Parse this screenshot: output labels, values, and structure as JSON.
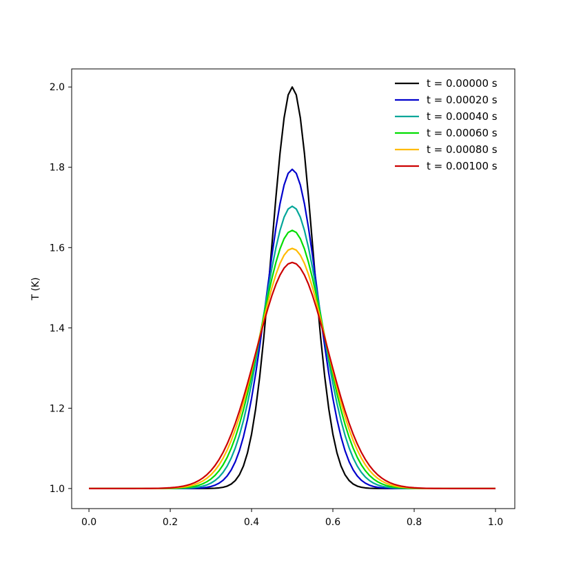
{
  "chart_data": {
    "type": "line",
    "title": "",
    "xlabel": "",
    "ylabel": "T (K)",
    "xlim": [
      -0.0425,
      1.0475
    ],
    "ylim": [
      0.95,
      2.045
    ],
    "x_ticks": [
      0.0,
      0.2,
      0.4,
      0.6,
      0.8,
      1.0
    ],
    "y_ticks": [
      1.0,
      1.2,
      1.4,
      1.6,
      1.8,
      2.0
    ],
    "x_tick_labels": [
      "0.0",
      "0.2",
      "0.4",
      "0.6",
      "0.8",
      "1.0"
    ],
    "y_tick_labels": [
      "1.0",
      "1.2",
      "1.4",
      "1.6",
      "1.8",
      "2.0"
    ],
    "grid": false,
    "legend_position": "top-right",
    "x_domain": [
      0.0,
      1.0
    ],
    "series": [
      {
        "name": "t = 0.00000 s",
        "color": "#000000",
        "peak_x": 0.5,
        "baseline": 1.0,
        "peak_amplitude": 1.0,
        "gaussian_width": 0.05
      },
      {
        "name": "t = 0.00020 s",
        "color": "#0000cc",
        "peak_x": 0.5,
        "baseline": 1.0,
        "peak_amplitude": 0.795,
        "gaussian_width": 0.0629
      },
      {
        "name": "t = 0.00040 s",
        "color": "#00a699",
        "peak_x": 0.5,
        "baseline": 1.0,
        "peak_amplitude": 0.703,
        "gaussian_width": 0.0711
      },
      {
        "name": "t = 0.00060 s",
        "color": "#00dd00",
        "peak_x": 0.5,
        "baseline": 1.0,
        "peak_amplitude": 0.643,
        "gaussian_width": 0.0778
      },
      {
        "name": "t = 0.00080 s",
        "color": "#ffbb00",
        "peak_x": 0.5,
        "baseline": 1.0,
        "peak_amplitude": 0.598,
        "gaussian_width": 0.0836
      },
      {
        "name": "t = 0.00100 s",
        "color": "#cc0000",
        "peak_x": 0.5,
        "baseline": 1.0,
        "peak_amplitude": 0.563,
        "gaussian_width": 0.0888
      }
    ]
  }
}
